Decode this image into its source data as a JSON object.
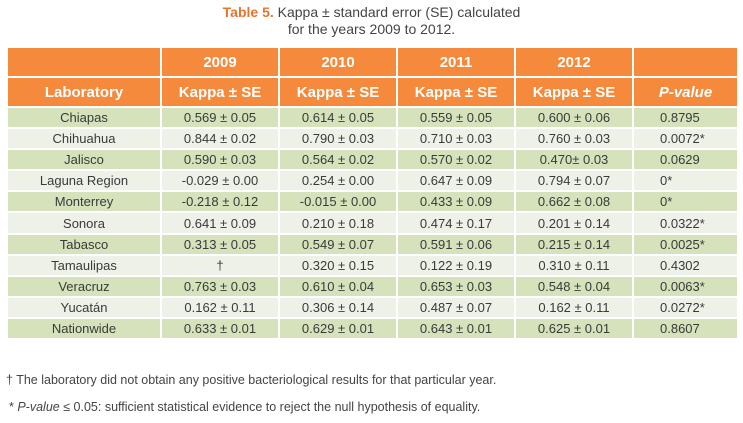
{
  "caption": {
    "label": "Table 5.",
    "text_line1": " Kappa ± standard error (SE) calculated",
    "text_line2": "for the years 2009 to 2012."
  },
  "years": [
    "2009",
    "2010",
    "2011",
    "2012"
  ],
  "headers": {
    "laboratory": "Laboratory",
    "kappa": [
      "Kappa ± SE",
      "Kappa ± SE",
      "Kappa ± SE",
      "Kappa ± SE"
    ],
    "pvalue": "P-value"
  },
  "rows": [
    {
      "lab": "Chiapas",
      "k2009": "0.569 ± 0.05",
      "k2010": "0.614 ± 0.05",
      "k2011": "0.559 ± 0.05",
      "k2012": "0.600 ± 0.06",
      "p": "0.8795"
    },
    {
      "lab": "Chihuahua",
      "k2009": "0.844 ± 0.02",
      "k2010": "0.790 ± 0.03",
      "k2011": "0.710 ± 0.03",
      "k2012": "0.760 ± 0.03",
      "p": "0.0072*"
    },
    {
      "lab": "Jalisco",
      "k2009": "0.590 ± 0.03",
      "k2010": "0.564 ± 0.02",
      "k2011": "0.570 ± 0.02",
      "k2012": "0.470± 0.03",
      "p": "0.0629"
    },
    {
      "lab": "Laguna Region",
      "k2009": "-0.029 ± 0.00",
      "k2010": "0.254 ± 0.00",
      "k2011": "0.647 ± 0.09",
      "k2012": "0.794 ± 0.07",
      "p": "0*"
    },
    {
      "lab": "Monterrey",
      "k2009": "-0.218 ± 0.12",
      "k2010": "-0.015 ± 0.00",
      "k2011": "0.433 ± 0.09",
      "k2012": "0.662 ± 0.08",
      "p": "0*"
    },
    {
      "lab": "Sonora",
      "k2009": "0.641 ± 0.09",
      "k2010": "0.210 ± 0.18",
      "k2011": "0.474 ± 0.17",
      "k2012": "0.201 ± 0.14",
      "p": "0.0322*"
    },
    {
      "lab": "Tabasco",
      "k2009": "0.313 ± 0.05",
      "k2010": "0.549 ± 0.07",
      "k2011": "0.591 ± 0.06",
      "k2012": "0.215 ± 0.14",
      "p": "0.0025*"
    },
    {
      "lab": "Tamaulipas",
      "k2009": "†",
      "k2010": "0.320 ± 0.15",
      "k2011": "0.122 ± 0.19",
      "k2012": "0.310 ± 0.11",
      "p": "0.4302"
    },
    {
      "lab": "Veracruz",
      "k2009": "0.763 ± 0.03",
      "k2010": "0.610 ± 0.04",
      "k2011": "0.653 ± 0.03",
      "k2012": "0.548 ± 0.04",
      "p": "0.0063*"
    },
    {
      "lab": "Yucatán",
      "k2009": "0.162 ± 0.11",
      "k2010": "0.306 ± 0.14",
      "k2011": "0.487 ± 0.07",
      "k2012": "0.162 ± 0.11",
      "p": "0.0272*"
    },
    {
      "lab": "Nationwide",
      "k2009": "0.633 ± 0.01",
      "k2010": "0.629 ± 0.01",
      "k2011": "0.643 ± 0.01",
      "k2012": "0.625 ± 0.01",
      "p": "0.8607"
    }
  ],
  "footnotes": {
    "dagger": "† The laboratory did not obtain any positive bacteriological results for that particular year.",
    "star_prefix": "* ",
    "star_italic": "P-value",
    "star_rest": " ≤ 0.05: sufficient statistical evidence to reject the null hypothesis of equality."
  },
  "colors": {
    "header_orange": "#f58a3c",
    "caption_label_orange": "#e8732b",
    "row_green": "#d5e2bb",
    "row_light": "#eef1e8"
  }
}
